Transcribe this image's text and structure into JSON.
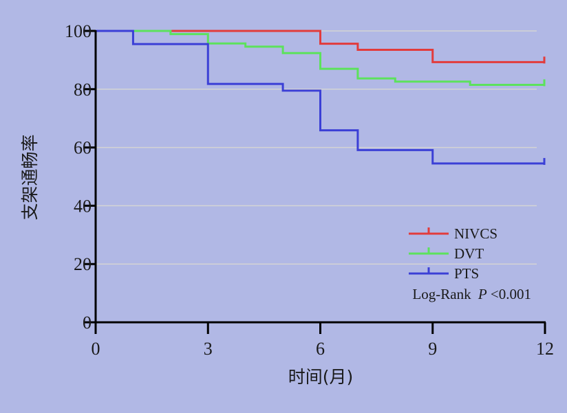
{
  "chart_data": {
    "type": "line",
    "step": true,
    "xlabel": "时间(月)",
    "ylabel": "支架通畅率",
    "xlim": [
      0,
      12
    ],
    "ylim": [
      0,
      100
    ],
    "xticks": [
      0,
      3,
      6,
      9,
      12
    ],
    "yticks": [
      0,
      20,
      40,
      60,
      80,
      100
    ],
    "xtick_labels": [
      "0",
      "3",
      "6",
      "9",
      "12"
    ],
    "ytick_labels": [
      "0",
      "20",
      "40",
      "60",
      "80",
      "100"
    ],
    "grid": "horizontal",
    "legend_position": "lower-right",
    "series": [
      {
        "name": "NIVCS",
        "color": "#e23b3b",
        "x": [
          0,
          6,
          7,
          9,
          12
        ],
        "y": [
          100,
          95.6,
          93.5,
          89.3,
          89.3
        ],
        "censor_x": [
          12
        ]
      },
      {
        "name": "DVT",
        "color": "#5ce25c",
        "x": [
          0,
          2,
          3,
          4,
          5,
          6,
          7,
          8,
          10,
          12
        ],
        "y": [
          100,
          98.9,
          95.7,
          94.6,
          92.4,
          87.0,
          83.7,
          82.6,
          81.5,
          81.5
        ],
        "censor_x": [
          12
        ]
      },
      {
        "name": "PTS",
        "color": "#3b3fd6",
        "x": [
          0,
          1,
          3,
          5,
          6,
          7,
          9,
          12
        ],
        "y": [
          100,
          95.5,
          81.8,
          79.5,
          65.9,
          59.1,
          54.5,
          54.5
        ],
        "censor_x": [
          12
        ]
      }
    ],
    "annotation": "Log-Rank",
    "annotation_p": "P",
    "annotation_value": "<0.001"
  }
}
